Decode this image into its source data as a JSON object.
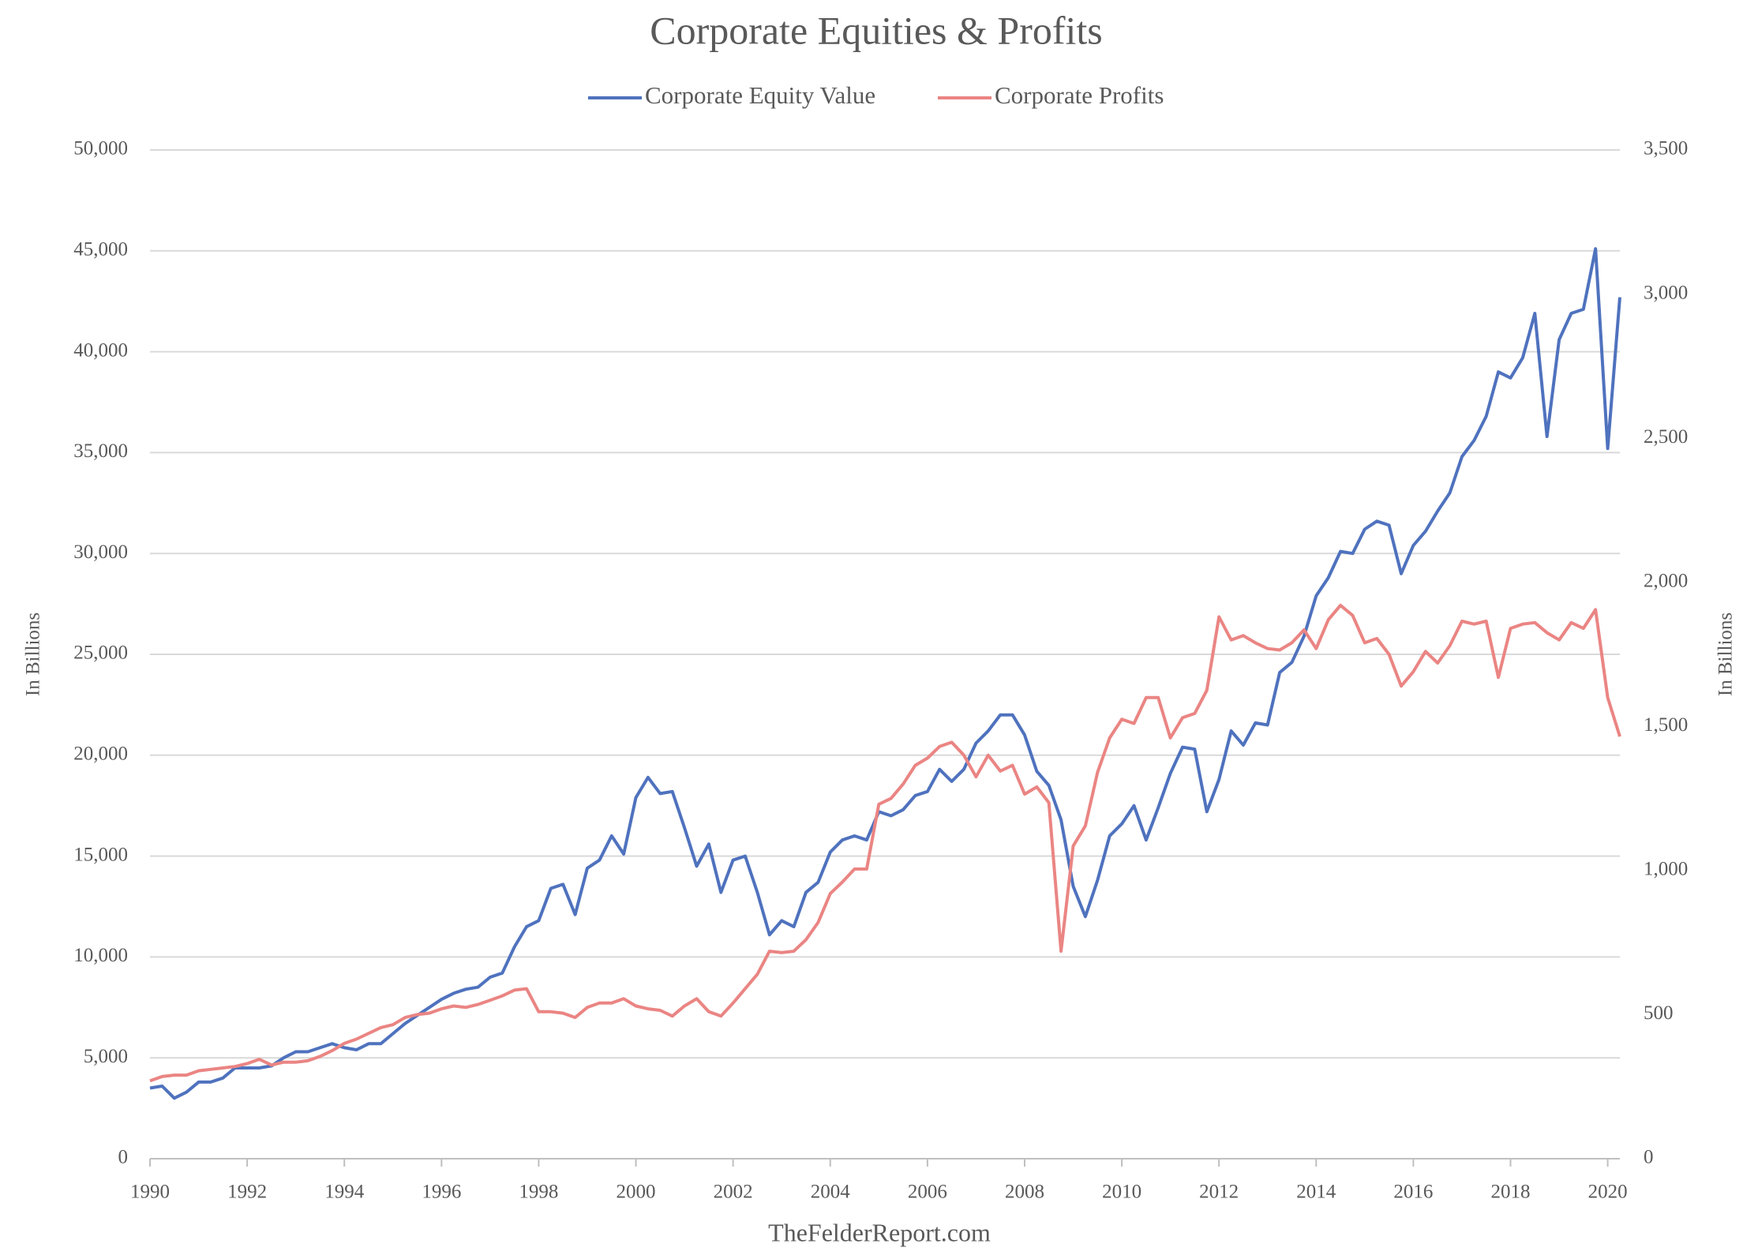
{
  "chart_data": {
    "type": "line",
    "title": "Corporate Equities & Profits",
    "ylabel": "In Billions",
    "y2label": "In Billions",
    "source": "TheFelderReport.com",
    "legend": "top",
    "grid": true,
    "xlim": [
      1990,
      2020.25
    ],
    "xticks": [
      1990,
      1992,
      1994,
      1996,
      1998,
      2000,
      2002,
      2004,
      2006,
      2008,
      2010,
      2012,
      2014,
      2016,
      2018,
      2020
    ],
    "ylim": [
      0,
      50000
    ],
    "yticks": [
      0,
      {
        "value": 5000,
        "label": "5,000"
      },
      {
        "value": 10000,
        "label": "10,000"
      },
      {
        "value": 15000,
        "label": "15,000"
      },
      {
        "value": 20000,
        "label": "20,000"
      },
      {
        "value": 25000,
        "label": "25,000"
      },
      {
        "value": 30000,
        "label": "30,000"
      },
      {
        "value": 35000,
        "label": "35,000"
      },
      {
        "value": 40000,
        "label": "40,000"
      },
      {
        "value": 45000,
        "label": "45,000"
      },
      {
        "value": 50000,
        "label": "50,000"
      }
    ],
    "y2lim": [
      0,
      3500
    ],
    "y2ticks": [
      0,
      500,
      {
        "value": 1000,
        "label": "1,000"
      },
      {
        "value": 1500,
        "label": "1,500"
      },
      {
        "value": 2000,
        "label": "2,000"
      },
      {
        "value": 2500,
        "label": "2,500"
      },
      {
        "value": 3000,
        "label": "3,000"
      },
      {
        "value": 3500,
        "label": "3,500"
      }
    ],
    "x": [
      1990,
      1990.25,
      1990.5,
      1990.75,
      1991,
      1991.25,
      1991.5,
      1991.75,
      1992,
      1992.25,
      1992.5,
      1992.75,
      1993,
      1993.25,
      1993.5,
      1993.75,
      1994,
      1994.25,
      1994.5,
      1994.75,
      1995,
      1995.25,
      1995.5,
      1995.75,
      1996,
      1996.25,
      1996.5,
      1996.75,
      1997,
      1997.25,
      1997.5,
      1997.75,
      1998,
      1998.25,
      1998.5,
      1998.75,
      1999,
      1999.25,
      1999.5,
      1999.75,
      2000,
      2000.25,
      2000.5,
      2000.75,
      2001,
      2001.25,
      2001.5,
      2001.75,
      2002,
      2002.25,
      2002.5,
      2002.75,
      2003,
      2003.25,
      2003.5,
      2003.75,
      2004,
      2004.25,
      2004.5,
      2004.75,
      2005,
      2005.25,
      2005.5,
      2005.75,
      2006,
      2006.25,
      2006.5,
      2006.75,
      2007,
      2007.25,
      2007.5,
      2007.75,
      2008,
      2008.25,
      2008.5,
      2008.75,
      2009,
      2009.25,
      2009.5,
      2009.75,
      2010,
      2010.25,
      2010.5,
      2010.75,
      2011,
      2011.25,
      2011.5,
      2011.75,
      2012,
      2012.25,
      2012.5,
      2012.75,
      2013,
      2013.25,
      2013.5,
      2013.75,
      2014,
      2014.25,
      2014.5,
      2014.75,
      2015,
      2015.25,
      2015.5,
      2015.75,
      2016,
      2016.25,
      2016.5,
      2016.75,
      2017,
      2017.25,
      2017.5,
      2017.75,
      2018,
      2018.25,
      2018.5,
      2018.75,
      2019,
      2019.25,
      2019.5,
      2019.75,
      2020,
      2020.25
    ],
    "series": [
      {
        "name": "Corporate Equity Value",
        "color": "#4f72be",
        "axis": "y",
        "values": [
          3500,
          3600,
          3000,
          3300,
          3800,
          3800,
          4000,
          4500,
          4500,
          4500,
          4600,
          5000,
          5300,
          5300,
          5500,
          5700,
          5500,
          5400,
          5700,
          5700,
          6200,
          6700,
          7100,
          7500,
          7900,
          8200,
          8400,
          8500,
          9000,
          9200,
          10500,
          11500,
          11800,
          13400,
          13600,
          12100,
          14400,
          14800,
          16000,
          15100,
          17900,
          18900,
          18100,
          18200,
          16400,
          14500,
          15600,
          13200,
          14800,
          15000,
          13200,
          11100,
          11800,
          11500,
          13200,
          13700,
          15200,
          15800,
          16000,
          15800,
          17200,
          17000,
          17300,
          18000,
          18200,
          19300,
          18700,
          19300,
          20600,
          21200,
          22000,
          22000,
          21000,
          19200,
          18500,
          16800,
          13500,
          12000,
          13800,
          16000,
          16600,
          17500,
          15800,
          17400,
          19100,
          20400,
          20300,
          17200,
          18800,
          21200,
          20500,
          21600,
          21500,
          24100,
          24600,
          25900,
          27900,
          28800,
          30100,
          30000,
          31200,
          31600,
          31400,
          29000,
          30400,
          31100,
          32100,
          33000,
          34800,
          35600,
          36800,
          39000,
          38700,
          39700,
          41900,
          35800,
          40600,
          41900,
          42100,
          45100,
          35200,
          42700
        ]
      },
      {
        "name": "Corporate Profits",
        "color": "#ea8583",
        "axis": "y2",
        "values": [
          270,
          285,
          290,
          290,
          305,
          310,
          315,
          320,
          330,
          345,
          325,
          335,
          335,
          340,
          355,
          375,
          400,
          415,
          435,
          455,
          465,
          490,
          500,
          505,
          520,
          530,
          525,
          535,
          550,
          565,
          585,
          590,
          510,
          510,
          505,
          490,
          525,
          540,
          540,
          555,
          530,
          520,
          515,
          495,
          530,
          555,
          510,
          495,
          540,
          590,
          640,
          720,
          715,
          720,
          760,
          820,
          920,
          960,
          1005,
          1005,
          1230,
          1250,
          1300,
          1365,
          1390,
          1430,
          1445,
          1400,
          1325,
          1400,
          1345,
          1365,
          1265,
          1290,
          1235,
          720,
          1085,
          1155,
          1340,
          1460,
          1525,
          1510,
          1600,
          1600,
          1460,
          1530,
          1545,
          1625,
          1880,
          1800,
          1815,
          1790,
          1770,
          1765,
          1790,
          1835,
          1770,
          1870,
          1920,
          1885,
          1790,
          1805,
          1750,
          1640,
          1690,
          1760,
          1720,
          1780,
          1865,
          1855,
          1865,
          1670,
          1840,
          1855,
          1860,
          1825,
          1800,
          1860,
          1840,
          1905,
          1600,
          1465
        ]
      }
    ]
  }
}
